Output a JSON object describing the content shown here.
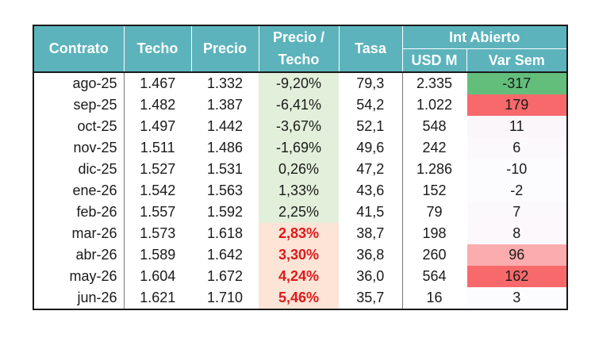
{
  "headers": {
    "contrato": "Contrato",
    "techo": "Techo",
    "precio": "Precio",
    "precio_techo_line1": "Precio /",
    "precio_techo_line2": "Techo",
    "tasa": "Tasa",
    "int_abierto": "Int Abierto",
    "usd_m": "USD M",
    "var_sem": "Var Sem"
  },
  "colors": {
    "header_bg": "#5cb3bc",
    "header_text": "#ffffff",
    "positive_pct_bg": "#e2efda",
    "negative_pct_bg": "#fce4d6",
    "negative_pct_text": "#e0191b",
    "var_green": "#63be7b",
    "var_red_strong": "#f8696b",
    "var_red_light": "#fbacae",
    "var_neutral": "#fcfcff"
  },
  "rows": [
    {
      "contrato": "ago-25",
      "techo": "1.467",
      "precio": "1.332",
      "precio_techo": "-9,20%",
      "tasa": "79,3",
      "usd_m": "2.335",
      "var_sem": "-317",
      "pt_bg": "#e2efda",
      "pt_red": false,
      "var_bg": "#63be7b"
    },
    {
      "contrato": "sep-25",
      "techo": "1.482",
      "precio": "1.387",
      "precio_techo": "-6,41%",
      "tasa": "54,2",
      "usd_m": "1.022",
      "var_sem": "179",
      "pt_bg": "#e2efda",
      "pt_red": false,
      "var_bg": "#f8696b"
    },
    {
      "contrato": "oct-25",
      "techo": "1.497",
      "precio": "1.442",
      "precio_techo": "-3,67%",
      "tasa": "52,1",
      "usd_m": "548",
      "var_sem": "11",
      "pt_bg": "#e2efda",
      "pt_red": false,
      "var_bg": "#fbf6f9"
    },
    {
      "contrato": "nov-25",
      "techo": "1.511",
      "precio": "1.486",
      "precio_techo": "-1,69%",
      "tasa": "49,6",
      "usd_m": "242",
      "var_sem": "6",
      "pt_bg": "#e2efda",
      "pt_red": false,
      "var_bg": "#fcf9fc"
    },
    {
      "contrato": "dic-25",
      "techo": "1.527",
      "precio": "1.531",
      "precio_techo": "0,26%",
      "tasa": "47,2",
      "usd_m": "1.286",
      "var_sem": "-10",
      "pt_bg": "#e2efda",
      "pt_red": false,
      "var_bg": "#fcfcff"
    },
    {
      "contrato": "ene-26",
      "techo": "1.542",
      "precio": "1.563",
      "precio_techo": "1,33%",
      "tasa": "43,6",
      "usd_m": "152",
      "var_sem": "-2",
      "pt_bg": "#e2efda",
      "pt_red": false,
      "var_bg": "#fcfcff"
    },
    {
      "contrato": "feb-26",
      "techo": "1.557",
      "precio": "1.592",
      "precio_techo": "2,25%",
      "tasa": "41,5",
      "usd_m": "79",
      "var_sem": "7",
      "pt_bg": "#e2efda",
      "pt_red": false,
      "var_bg": "#fcf9fc"
    },
    {
      "contrato": "mar-26",
      "techo": "1.573",
      "precio": "1.618",
      "precio_techo": "2,83%",
      "tasa": "38,7",
      "usd_m": "198",
      "var_sem": "8",
      "pt_bg": "#fce4d6",
      "pt_red": true,
      "var_bg": "#fcf8fb"
    },
    {
      "contrato": "abr-26",
      "techo": "1.589",
      "precio": "1.642",
      "precio_techo": "3,30%",
      "tasa": "36,8",
      "usd_m": "260",
      "var_sem": "96",
      "pt_bg": "#fce4d6",
      "pt_red": true,
      "var_bg": "#fbacae"
    },
    {
      "contrato": "may-26",
      "techo": "1.604",
      "precio": "1.672",
      "precio_techo": "4,24%",
      "tasa": "36,0",
      "usd_m": "564",
      "var_sem": "162",
      "pt_bg": "#fce4d6",
      "pt_red": true,
      "var_bg": "#f8696b"
    },
    {
      "contrato": "jun-26",
      "techo": "1.621",
      "precio": "1.710",
      "precio_techo": "5,46%",
      "tasa": "35,7",
      "usd_m": "16",
      "var_sem": "3",
      "pt_bg": "#fce4d6",
      "pt_red": true,
      "var_bg": "#fcfbfe"
    }
  ]
}
